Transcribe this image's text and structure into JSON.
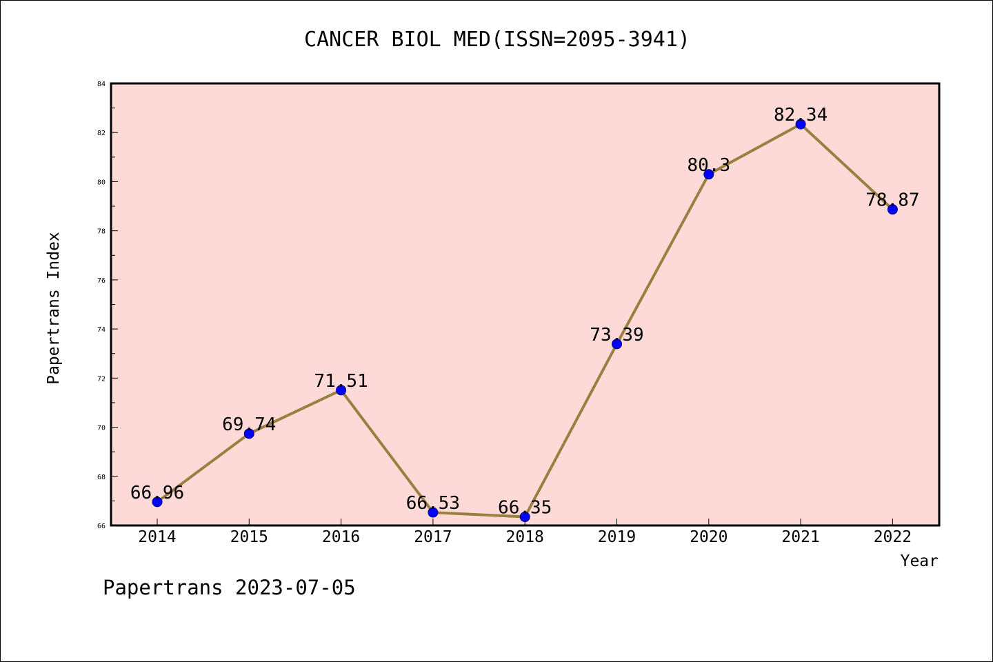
{
  "footer": "Papertrans 2023-07-05",
  "colors": {
    "plot_background": "#fddad8",
    "line": "#9a8040",
    "marker": "#0000ff",
    "marker_edge": "#000080"
  },
  "chart_data": {
    "type": "line",
    "title": "CANCER BIOL MED(ISSN=2095-3941)",
    "xlabel": "Year",
    "ylabel": "Papertrans Index",
    "categories": [
      "2014",
      "2015",
      "2016",
      "2017",
      "2018",
      "2019",
      "2020",
      "2021",
      "2022"
    ],
    "series": [
      {
        "values": [
          66.96,
          69.74,
          71.51,
          66.53,
          66.35,
          73.39,
          80.3,
          82.34,
          78.87
        ],
        "labels": [
          "66.96",
          "69.74",
          "71.51",
          "66.53",
          "66.35",
          "73.39",
          "80.3",
          "82.34",
          "78.87"
        ]
      }
    ],
    "ylim": [
      66,
      84
    ],
    "yticks": [
      "66",
      "68",
      "70",
      "72",
      "74",
      "76",
      "78",
      "80",
      "82",
      "84"
    ],
    "grid": false,
    "legend": "none"
  }
}
